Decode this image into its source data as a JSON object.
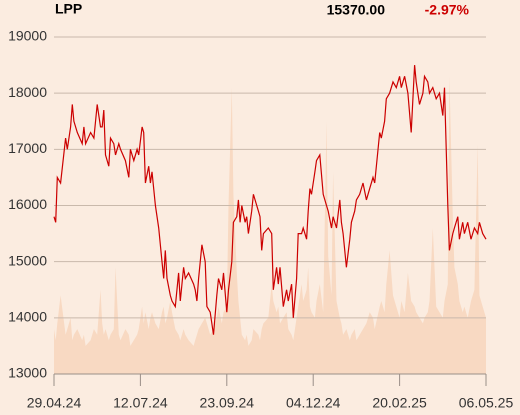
{
  "chart_data": {
    "type": "line",
    "title": "LPP",
    "last_price": "15370.00",
    "change": "-2.97%",
    "color": "#cc0000",
    "volume_color": "#f8d9c2",
    "change_color": "#cc0000",
    "grid": true,
    "x": [
      0,
      1,
      2,
      4,
      7,
      8,
      10,
      11,
      12,
      14,
      17,
      18,
      19,
      22,
      24,
      26,
      28,
      29,
      30,
      31,
      33,
      34,
      36,
      37,
      39,
      40,
      43,
      45,
      46,
      48,
      50,
      51,
      53,
      54,
      55,
      57,
      58,
      59,
      61,
      63,
      65,
      66,
      67,
      68,
      70,
      71,
      73,
      75,
      76,
      78,
      79,
      81,
      84,
      85,
      86,
      87,
      89,
      91,
      92,
      94,
      96,
      98,
      99,
      101,
      102,
      104,
      105,
      107,
      108,
      110,
      111,
      112,
      113,
      115,
      116,
      117,
      119,
      120,
      123,
      124,
      125,
      126,
      129,
      131,
      132,
      134,
      135,
      136,
      138,
      140,
      141,
      143,
      144,
      146,
      147,
      149,
      150,
      152,
      153,
      154,
      155,
      157,
      158,
      160,
      162,
      164,
      165,
      167,
      168,
      170,
      172,
      173,
      174,
      176,
      178,
      179,
      181,
      182,
      184,
      186,
      188,
      190,
      192,
      193,
      196,
      197,
      199,
      200,
      202,
      204,
      206,
      208,
      209,
      211,
      213,
      215,
      217,
      218,
      220,
      222,
      223,
      225,
      226,
      228,
      230,
      232,
      234,
      235,
      237,
      238,
      240,
      241,
      243,
      244,
      246,
      247,
      249,
      251,
      253,
      255,
      256,
      258,
      260
    ],
    "values": [
      15800,
      15700,
      16500,
      16400,
      17200,
      17000,
      17400,
      17800,
      17500,
      17300,
      17100,
      17400,
      17100,
      17300,
      17200,
      17800,
      17400,
      17400,
      17700,
      16900,
      16700,
      17200,
      17100,
      16900,
      17100,
      17000,
      16800,
      16500,
      17000,
      16800,
      17000,
      16900,
      17400,
      17300,
      16400,
      16700,
      16400,
      16600,
      16000,
      15600,
      15000,
      14700,
      15200,
      14700,
      14400,
      14300,
      14200,
      14800,
      14300,
      14900,
      14700,
      14800,
      14600,
      14500,
      14300,
      14700,
      15300,
      15000,
      14200,
      14100,
      13700,
      14400,
      14700,
      14500,
      14800,
      14100,
      14500,
      15000,
      15700,
      15800,
      16100,
      15700,
      16000,
      15700,
      15800,
      15500,
      15900,
      16200,
      15900,
      15800,
      15200,
      15500,
      15600,
      15500,
      14500,
      14900,
      14600,
      14900,
      14200,
      14500,
      14300,
      14600,
      14000,
      14700,
      15500,
      15500,
      15600,
      15400,
      15900,
      16300,
      16200,
      16600,
      16800,
      16900,
      16200,
      16000,
      15900,
      15600,
      15800,
      15600,
      16100,
      15700,
      15500,
      14900,
      15400,
      15700,
      15900,
      16100,
      16200,
      16400,
      16100,
      16300,
      16500,
      16400,
      17300,
      17200,
      17500,
      17900,
      18000,
      18200,
      18100,
      18300,
      18100,
      18300,
      18000,
      17300,
      18500,
      18200,
      17800,
      18000,
      18300,
      18200,
      18000,
      18100,
      17900,
      18000,
      17600,
      18100,
      16000,
      15200,
      15500,
      15600,
      15800,
      15400,
      15700,
      15500,
      15700,
      15400,
      15600,
      15500,
      15700,
      15500,
      15400
    ],
    "volume": [
      13800,
      13600,
      13900,
      14400,
      13700,
      13800,
      14000,
      13600,
      13700,
      13800,
      13600,
      13700,
      13500,
      13600,
      13800,
      13700,
      14500,
      13900,
      13700,
      13800,
      13600,
      13700,
      13800,
      14900,
      13700,
      13600,
      13800,
      13700,
      13500,
      13600,
      13700,
      13800,
      14200,
      13900,
      14100,
      13800,
      14000,
      14100,
      13900,
      13800,
      14100,
      14200,
      13900,
      14000,
      14300,
      14100,
      13800,
      13700,
      13600,
      13800,
      13700,
      13600,
      13500,
      13600,
      13700,
      13800,
      13900,
      14000,
      13900,
      13700,
      13800,
      14000,
      14200,
      13900,
      14100,
      14200,
      16000,
      18100,
      16200,
      14800,
      14300,
      14000,
      13700,
      13600,
      13700,
      13500,
      13600,
      13800,
      13700,
      13600,
      13800,
      13900,
      14000,
      14600,
      14300,
      14100,
      14200,
      13900,
      14000,
      14100,
      13800,
      13700,
      13600,
      14000,
      14200,
      14600,
      14300,
      14500,
      14900,
      14200,
      14100,
      14000,
      14300,
      14600,
      14100,
      17500,
      15100,
      14400,
      16600,
      14300,
      14000,
      13900,
      13700,
      13800,
      13600,
      13700,
      13800,
      13600,
      13700,
      13800,
      13900,
      14100,
      14000,
      13800,
      14200,
      14300,
      14100,
      14600,
      15200,
      14400,
      14200,
      14000,
      14300,
      14100,
      14800,
      14300,
      14200,
      14100,
      14000,
      13900,
      14000,
      14100,
      14300,
      15600,
      14200,
      14100,
      14000,
      14300,
      14600,
      18300,
      15800,
      14900,
      14600,
      14300,
      14100,
      14200,
      14000,
      14300,
      14500,
      17100,
      14400,
      14200,
      14000
    ],
    "xlim": [
      0,
      260
    ],
    "xticks": [
      {
        "value": 0,
        "label": "29.04.24"
      },
      {
        "value": 52,
        "label": "12.07.24"
      },
      {
        "value": 104,
        "label": "23.09.24"
      },
      {
        "value": 156,
        "label": "04.12.24"
      },
      {
        "value": 208,
        "label": "20.02.25"
      },
      {
        "value": 260,
        "label": "06.05.25"
      }
    ],
    "ylim": [
      13000,
      19000
    ],
    "yticks": [
      13000,
      14000,
      15000,
      16000,
      17000,
      18000,
      19000
    ]
  }
}
